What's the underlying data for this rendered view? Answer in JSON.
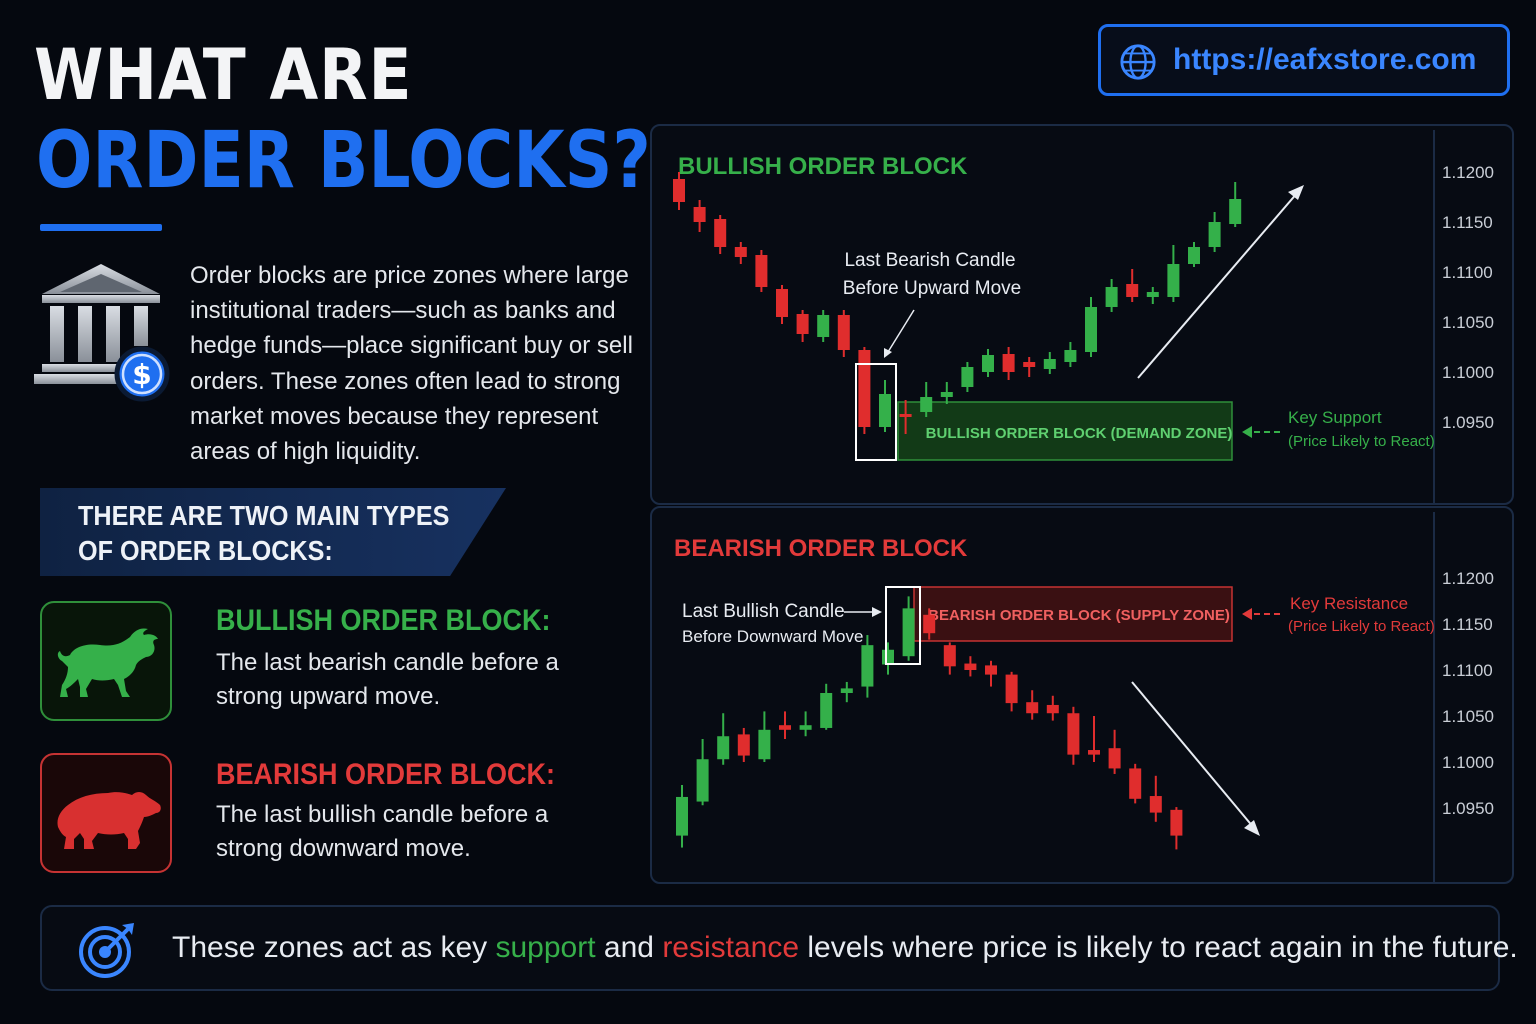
{
  "header": {
    "title_line1": "WHAT ARE",
    "title_line2": "ORDER BLOCKS?",
    "url": "https://eafxstore.com"
  },
  "intro": {
    "text": "Order blocks are price zones where large institutional traders—such as banks and hedge funds—place significant buy or sell orders. These zones often lead to strong market moves because they represent areas of high liquidity."
  },
  "types": {
    "banner": "THERE ARE TWO MAIN TYPES OF ORDER BLOCKS:",
    "bullish": {
      "title": "BULLISH ORDER BLOCK:",
      "desc": "The last bearish candle before a strong upward move."
    },
    "bearish": {
      "title": "BEARISH ORDER BLOCK:",
      "desc": "The last bullish candle before a strong downward move."
    }
  },
  "colors": {
    "accent_blue": "#1f6ff0",
    "bull_green": "#36b04a",
    "bear_red": "#e23a3a",
    "background": "#05080f"
  },
  "icons": [
    "bank-icon",
    "dollar-icon",
    "bull-icon",
    "bear-icon",
    "globe-icon",
    "target-icon"
  ],
  "chart_data": [
    {
      "type": "candlestick",
      "title": "BULLISH ORDER BLOCK",
      "y_ticks": [
        "1.1200",
        "1.1150",
        "1.1100",
        "1.1050",
        "1.1000",
        "1.0950"
      ],
      "ylim": [
        1.09,
        1.122
      ],
      "annotation_candle": [
        "Last Bearish Candle",
        "Before Upward Move"
      ],
      "zone_label": "BULLISH ORDER BLOCK (DEMAND ZONE)",
      "key_label": [
        "Key Support",
        "(Price Likely to React)"
      ],
      "candles": [
        {
          "o": 1.1193,
          "c": 1.117,
          "h": 1.12,
          "l": 1.1162
        },
        {
          "o": 1.1165,
          "c": 1.115,
          "h": 1.1172,
          "l": 1.114
        },
        {
          "o": 1.1153,
          "c": 1.1125,
          "h": 1.1157,
          "l": 1.1118
        },
        {
          "o": 1.1125,
          "c": 1.1115,
          "h": 1.113,
          "l": 1.1108
        },
        {
          "o": 1.1117,
          "c": 1.1085,
          "h": 1.1122,
          "l": 1.108
        },
        {
          "o": 1.1083,
          "c": 1.1055,
          "h": 1.1087,
          "l": 1.1048
        },
        {
          "o": 1.1058,
          "c": 1.1038,
          "h": 1.1062,
          "l": 1.103
        },
        {
          "o": 1.1035,
          "c": 1.1057,
          "h": 1.1062,
          "l": 1.103
        },
        {
          "o": 1.1057,
          "c": 1.1022,
          "h": 1.1062,
          "l": 1.1015
        },
        {
          "o": 1.1022,
          "c": 1.0945,
          "h": 1.1025,
          "l": 1.0938
        },
        {
          "o": 1.0945,
          "c": 1.0978,
          "h": 1.0992,
          "l": 1.094
        },
        {
          "o": 1.0958,
          "c": 1.0955,
          "h": 1.0972,
          "l": 1.0938
        },
        {
          "o": 1.096,
          "c": 1.0975,
          "h": 1.099,
          "l": 1.0955
        },
        {
          "o": 1.0975,
          "c": 1.098,
          "h": 1.099,
          "l": 1.0968
        },
        {
          "o": 1.0985,
          "c": 1.1005,
          "h": 1.101,
          "l": 1.098
        },
        {
          "o": 1.1,
          "c": 1.1017,
          "h": 1.1023,
          "l": 1.0995
        },
        {
          "o": 1.1018,
          "c": 1.1,
          "h": 1.1025,
          "l": 1.0992
        },
        {
          "o": 1.101,
          "c": 1.1005,
          "h": 1.1015,
          "l": 1.0995
        },
        {
          "o": 1.1003,
          "c": 1.1013,
          "h": 1.102,
          "l": 1.0998
        },
        {
          "o": 1.101,
          "c": 1.1022,
          "h": 1.103,
          "l": 1.1005
        },
        {
          "o": 1.102,
          "c": 1.1065,
          "h": 1.1075,
          "l": 1.1015
        },
        {
          "o": 1.1065,
          "c": 1.1085,
          "h": 1.1093,
          "l": 1.106
        },
        {
          "o": 1.1088,
          "c": 1.1075,
          "h": 1.1103,
          "l": 1.107
        },
        {
          "o": 1.1075,
          "c": 1.108,
          "h": 1.1085,
          "l": 1.1068
        },
        {
          "o": 1.1075,
          "c": 1.1108,
          "h": 1.1127,
          "l": 1.107
        },
        {
          "o": 1.1108,
          "c": 1.1125,
          "h": 1.113,
          "l": 1.1105
        },
        {
          "o": 1.1125,
          "c": 1.115,
          "h": 1.116,
          "l": 1.112
        },
        {
          "o": 1.1148,
          "c": 1.1173,
          "h": 1.119,
          "l": 1.1145
        }
      ]
    },
    {
      "type": "candlestick",
      "title": "BEARISH ORDER BLOCK",
      "y_ticks": [
        "1.1200",
        "1.1150",
        "1.1100",
        "1.1050",
        "1.1000",
        "1.0950"
      ],
      "ylim": [
        1.09,
        1.1215
      ],
      "annotation_candle": [
        "Last Bullish Candle",
        "Before Downward Move"
      ],
      "zone_label": "BEARISH ORDER BLOCK (SUPPLY ZONE)",
      "key_label": [
        "Key Resistance",
        "(Price Likely to React)"
      ],
      "candles": [
        {
          "o": 1.092,
          "c": 1.0962,
          "h": 1.0975,
          "l": 1.0907
        },
        {
          "o": 1.0957,
          "c": 1.1003,
          "h": 1.1025,
          "l": 1.0953
        },
        {
          "o": 1.1003,
          "c": 1.1028,
          "h": 1.1053,
          "l": 1.0997
        },
        {
          "o": 1.103,
          "c": 1.1007,
          "h": 1.1037,
          "l": 1.1
        },
        {
          "o": 1.1003,
          "c": 1.1035,
          "h": 1.1055,
          "l": 1.1
        },
        {
          "o": 1.104,
          "c": 1.1035,
          "h": 1.1055,
          "l": 1.1025
        },
        {
          "o": 1.1035,
          "c": 1.104,
          "h": 1.1055,
          "l": 1.1028
        },
        {
          "o": 1.1037,
          "c": 1.1075,
          "h": 1.1085,
          "l": 1.1035
        },
        {
          "o": 1.1075,
          "c": 1.108,
          "h": 1.1087,
          "l": 1.1065
        },
        {
          "o": 1.1082,
          "c": 1.1127,
          "h": 1.1138,
          "l": 1.107
        },
        {
          "o": 1.1106,
          "c": 1.1122,
          "h": 1.113,
          "l": 1.1095
        },
        {
          "o": 1.1115,
          "c": 1.1167,
          "h": 1.118,
          "l": 1.111
        },
        {
          "o": 1.116,
          "c": 1.114,
          "h": 1.1167,
          "l": 1.1133
        },
        {
          "o": 1.1127,
          "c": 1.1104,
          "h": 1.113,
          "l": 1.1095
        },
        {
          "o": 1.1107,
          "c": 1.11,
          "h": 1.1115,
          "l": 1.1093
        },
        {
          "o": 1.1105,
          "c": 1.1095,
          "h": 1.111,
          "l": 1.1082
        },
        {
          "o": 1.1095,
          "c": 1.1064,
          "h": 1.1098,
          "l": 1.1055
        },
        {
          "o": 1.1065,
          "c": 1.1053,
          "h": 1.1078,
          "l": 1.1046
        },
        {
          "o": 1.1062,
          "c": 1.1053,
          "h": 1.1072,
          "l": 1.1045
        },
        {
          "o": 1.1053,
          "c": 1.1008,
          "h": 1.106,
          "l": 1.0997
        },
        {
          "o": 1.1013,
          "c": 1.1008,
          "h": 1.105,
          "l": 1.1
        },
        {
          "o": 1.1015,
          "c": 1.0993,
          "h": 1.1035,
          "l": 1.0987
        },
        {
          "o": 1.0993,
          "c": 1.096,
          "h": 1.0998,
          "l": 1.0955
        },
        {
          "o": 1.0963,
          "c": 1.0945,
          "h": 1.0985,
          "l": 1.0935
        },
        {
          "o": 1.0948,
          "c": 1.092,
          "h": 1.0951,
          "l": 1.0905
        }
      ]
    }
  ],
  "footer": {
    "pre": "These zones act as key ",
    "support": "support",
    "mid": " and ",
    "resistance": "resistance",
    "post": " levels where price is likely to react again in the future."
  }
}
